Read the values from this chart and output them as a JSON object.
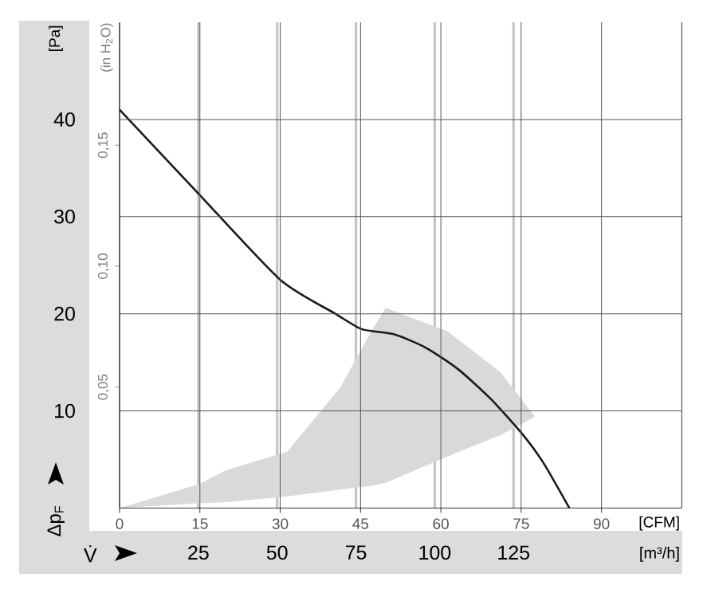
{
  "chart_data": {
    "type": "line",
    "xlabel": "[CFM]",
    "ylabel": "[Pa]",
    "y2label": "(in H$_{2}$O)",
    "x2label": "[m³/h]",
    "annotations": [
      "Δp$_{F}$",
      "V̇"
    ],
    "xlim": [
      0,
      105
    ],
    "xticks": [
      0,
      15,
      30,
      45,
      60,
      75,
      90
    ],
    "ylim": [
      0,
      50
    ],
    "yticks": [
      10,
      20,
      30,
      40
    ],
    "y2lim": [
      0,
      0.2008
    ],
    "y2ticks": [
      {
        "value": 0.05,
        "label": "0,05"
      },
      {
        "value": 0.1,
        "label": "0,10"
      },
      {
        "value": 0.15,
        "label": "0,15"
      }
    ],
    "x2lim": [
      0,
      178.4
    ],
    "x2ticks": [
      25,
      50,
      75,
      100,
      125
    ],
    "grid": true,
    "series": [
      {
        "type": "area",
        "color": "#d9d9d9",
        "x": [
          0,
          15,
          20,
          31.3,
          41.2,
          47.2,
          49.7,
          61.2,
          71.1,
          77.6,
          71.1,
          61.2,
          49.7,
          47.2,
          41.2,
          31.3,
          20,
          15
        ],
        "values": [
          0,
          2.5,
          3.9,
          5.8,
          12.4,
          18.4,
          20.6,
          18.2,
          14.0,
          9.4,
          7.5,
          5.3,
          2.6,
          2.3,
          1.9,
          1.2,
          0.6,
          0.5
        ]
      },
      {
        "color": "#1a1a1a",
        "x": [
          0,
          15,
          30,
          40.3,
          45.3,
          51.2,
          57.2,
          63.2,
          69.2,
          75.1,
          79.1,
          84
        ],
        "values": [
          41,
          32.2,
          23.5,
          20,
          18.4,
          17.9,
          16.5,
          14.3,
          11.3,
          7.7,
          4.7,
          0
        ]
      }
    ]
  }
}
